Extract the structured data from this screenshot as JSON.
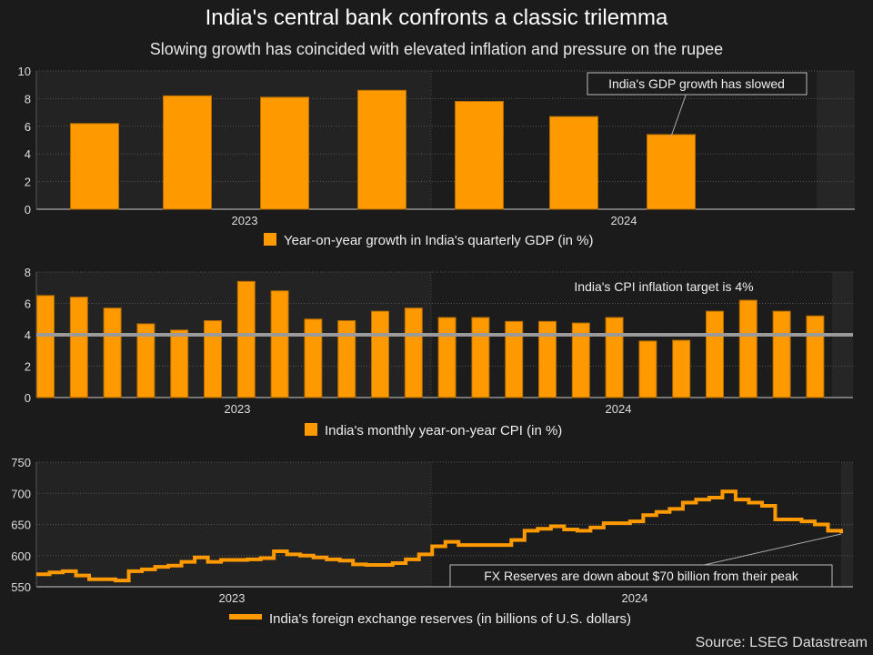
{
  "title": "India's central bank confronts a classic trilemma",
  "subtitle": "Slowing growth has coincided with elevated inflation and pressure on the rupee",
  "source": "Source: LSEG Datastream",
  "colors": {
    "bar": "#ff9900",
    "background": "#1b1b1b",
    "target_line": "#9a9a9a"
  },
  "chart_data": [
    {
      "type": "bar",
      "legend": "Year-on-year growth in India's quarterly GDP (in %)",
      "annotation": "India's GDP growth has slowed",
      "values": [
        6.2,
        8.2,
        8.1,
        8.6,
        7.8,
        6.7,
        5.4
      ],
      "ylim": [
        0,
        10
      ],
      "yticks": [
        0,
        2,
        4,
        6,
        8,
        10
      ],
      "xtick_labels": [
        "2023",
        "2024"
      ],
      "grid": true,
      "legend_position": "bottom"
    },
    {
      "type": "bar",
      "legend": "India's monthly year-on-year CPI (in %)",
      "annotation": "India's CPI inflation target is 4%",
      "target": 4,
      "values": [
        6.5,
        6.4,
        5.7,
        4.7,
        4.3,
        4.9,
        7.4,
        6.8,
        5.0,
        4.9,
        5.5,
        5.7,
        5.1,
        5.1,
        4.85,
        4.85,
        4.75,
        5.1,
        3.6,
        3.65,
        5.5,
        6.2,
        5.5,
        5.2
      ],
      "ylim": [
        0,
        8
      ],
      "yticks": [
        0,
        2,
        4,
        6,
        8
      ],
      "xtick_labels": [
        "2023",
        "2024"
      ],
      "grid": true,
      "legend_position": "bottom"
    },
    {
      "type": "line",
      "legend": "India's foreign exchange reserves (in billions of U.S. dollars)",
      "annotation": "FX Reserves are down about $70 billion from their peak",
      "values": [
        570,
        573,
        575,
        568,
        562,
        562,
        560,
        575,
        578,
        582,
        584,
        590,
        597,
        590,
        593,
        593,
        594,
        596,
        607,
        602,
        600,
        597,
        594,
        592,
        586,
        585,
        585,
        588,
        594,
        602,
        615,
        622,
        617,
        617,
        617,
        617,
        625,
        640,
        643,
        647,
        642,
        640,
        645,
        652,
        652,
        655,
        665,
        670,
        675,
        685,
        690,
        693,
        703,
        690,
        685,
        680,
        658,
        658,
        655,
        650,
        640,
        636
      ],
      "ylim": [
        550,
        750
      ],
      "yticks": [
        550,
        600,
        650,
        700,
        750
      ],
      "xtick_labels": [
        "2023",
        "2024"
      ],
      "grid": true,
      "legend_position": "bottom"
    }
  ]
}
